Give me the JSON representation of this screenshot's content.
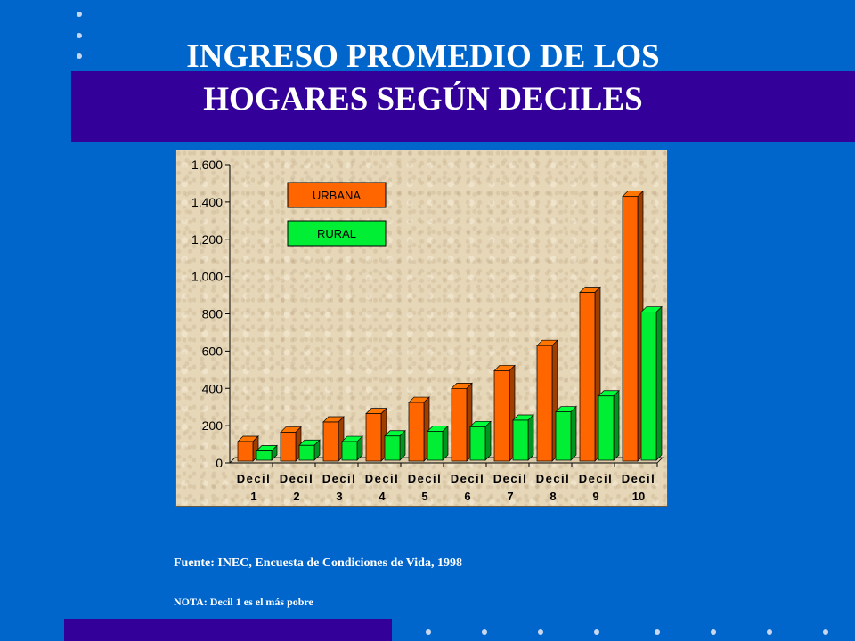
{
  "slide": {
    "title_line1": "INGRESO PROMEDIO  DE LOS",
    "title_line2": "HOGARES SEGÚN DECILES",
    "source": "Fuente:  INEC, Encuesta de Condiciones de Vida, 1998",
    "note": "NOTA: Decil 1 es el  más pobre"
  },
  "colors": {
    "background": "#0066cc",
    "band": "#330099",
    "urbana": "#ff6600",
    "rural": "#00ee33"
  },
  "chart_data": {
    "type": "bar",
    "categories": [
      [
        "Decil",
        "1"
      ],
      [
        "Decil",
        "2"
      ],
      [
        "Decil",
        "3"
      ],
      [
        "Decil",
        "4"
      ],
      [
        "Decil",
        "5"
      ],
      [
        "Decil",
        "6"
      ],
      [
        "Decil",
        "7"
      ],
      [
        "Decil",
        "8"
      ],
      [
        "Decil",
        "9"
      ],
      [
        "Decil",
        "10"
      ]
    ],
    "series": [
      {
        "name": "URBANA",
        "color": "#ff6600",
        "values": [
          105,
          155,
          210,
          255,
          315,
          390,
          485,
          620,
          905,
          1420
        ]
      },
      {
        "name": "RURAL",
        "color": "#00ee33",
        "values": [
          50,
          80,
          100,
          130,
          155,
          180,
          215,
          260,
          345,
          795
        ]
      }
    ],
    "ylim": [
      0,
      1600
    ],
    "yticks": [
      "1,600",
      "1,400",
      "1,200",
      "1,000",
      "800",
      "600",
      "400",
      "200",
      "0"
    ],
    "ytick_values": [
      1600,
      1400,
      1200,
      1000,
      800,
      600,
      400,
      200,
      0
    ],
    "grid": false,
    "legend_position": "top-left",
    "style": "3d"
  }
}
